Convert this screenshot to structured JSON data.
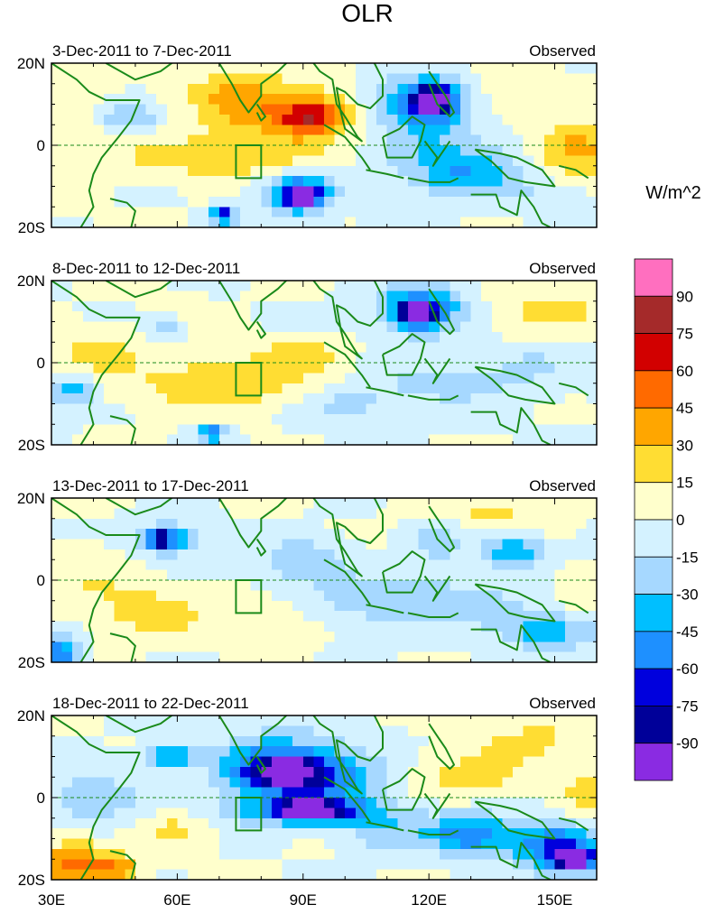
{
  "chart_data": {
    "type": "heatmap",
    "title": "OLR",
    "units": "W/m^2",
    "lon_range": [
      30,
      160
    ],
    "lat_range": [
      -20,
      20
    ],
    "x_ticks": [
      {
        "value": 30,
        "label": "30E"
      },
      {
        "value": 60,
        "label": "60E"
      },
      {
        "value": 90,
        "label": "90E"
      },
      {
        "value": 120,
        "label": "120E"
      },
      {
        "value": 150,
        "label": "150E"
      }
    ],
    "y_ticks": [
      {
        "value": 20,
        "label": "20N"
      },
      {
        "value": 0,
        "label": "0"
      },
      {
        "value": -20,
        "label": "20S"
      }
    ],
    "colorbar": {
      "levels": [
        "90",
        "75",
        "60",
        "45",
        "30",
        "15",
        "0",
        "-15",
        "-30",
        "-45",
        "-60",
        "-75",
        "-90"
      ],
      "colors": [
        "#ff6fbf",
        "#a52a2a",
        "#d20000",
        "#ff6a00",
        "#ffa600",
        "#ffdd33",
        "#ffffcc",
        "#d4f2ff",
        "#a6d8ff",
        "#00bfff",
        "#1e90ff",
        "#0000dd",
        "#000099",
        "#8a2be2"
      ]
    },
    "box_region": {
      "lon": [
        74,
        80
      ],
      "lat": [
        -8,
        0
      ]
    },
    "panels": [
      {
        "period": "3-Dec-2011 to 7-Dec-2011",
        "label": "Observed",
        "blobs": [
          {
            "lon": 85,
            "lat": 8,
            "rlon": 18,
            "rlat": 8,
            "v": 35
          },
          {
            "lon": 92,
            "lat": 7,
            "rlon": 8,
            "rlat": 4,
            "v": 50
          },
          {
            "lon": 70,
            "lat": -3,
            "rlon": 25,
            "rlat": 5,
            "v": 25
          },
          {
            "lon": 72,
            "lat": 13,
            "rlon": 10,
            "rlat": 6,
            "v": 20
          },
          {
            "lon": 155,
            "lat": -1,
            "rlon": 10,
            "rlat": 6,
            "v": 40
          },
          {
            "lon": 140,
            "lat": 12,
            "rlon": 15,
            "rlat": 6,
            "v": 15
          },
          {
            "lon": 35,
            "lat": 5,
            "rlon": 10,
            "rlat": 15,
            "v": 8
          },
          {
            "lon": 118,
            "lat": 10,
            "rlon": 12,
            "rlat": 7,
            "v": -55
          },
          {
            "lon": 121,
            "lat": 11,
            "rlon": 5,
            "rlat": 4,
            "v": -80
          },
          {
            "lon": 125,
            "lat": -2,
            "rlon": 18,
            "rlat": 6,
            "v": -25
          },
          {
            "lon": 128,
            "lat": -8,
            "rlon": 12,
            "rlat": 5,
            "v": -35
          },
          {
            "lon": 89,
            "lat": -12,
            "rlon": 8,
            "rlat": 5,
            "v": -65
          },
          {
            "lon": 90,
            "lat": -12,
            "rlon": 3,
            "rlat": 2,
            "v": -95
          },
          {
            "lon": 71,
            "lat": -17,
            "rlon": 3,
            "rlat": 2,
            "v": -75
          },
          {
            "lon": 48,
            "lat": 7,
            "rlon": 8,
            "rlat": 3,
            "v": -30
          },
          {
            "lon": 145,
            "lat": -12,
            "rlon": 15,
            "rlat": 5,
            "v": -10
          }
        ]
      },
      {
        "period": "8-Dec-2011 to 12-Dec-2011",
        "label": "Observed",
        "blobs": [
          {
            "lon": 72,
            "lat": -5,
            "rlon": 22,
            "rlat": 6,
            "v": 30
          },
          {
            "lon": 90,
            "lat": 2,
            "rlon": 10,
            "rlat": 4,
            "v": 22
          },
          {
            "lon": 150,
            "lat": 13,
            "rlon": 15,
            "rlat": 6,
            "v": 20
          },
          {
            "lon": 40,
            "lat": 2,
            "rlon": 10,
            "rlat": 5,
            "v": 20
          },
          {
            "lon": 60,
            "lat": 8,
            "rlon": 12,
            "rlat": 5,
            "v": 10
          },
          {
            "lon": 118,
            "lat": 13,
            "rlon": 10,
            "rlat": 6,
            "v": -60
          },
          {
            "lon": 117,
            "lat": 12,
            "rlon": 4,
            "rlat": 3,
            "v": -85
          },
          {
            "lon": 125,
            "lat": -5,
            "rlon": 20,
            "rlat": 6,
            "v": -20
          },
          {
            "lon": 35,
            "lat": -7,
            "rlon": 5,
            "rlat": 4,
            "v": -40
          },
          {
            "lon": 58,
            "lat": 8,
            "rlon": 6,
            "rlat": 3,
            "v": -30
          },
          {
            "lon": 68,
            "lat": -17,
            "rlon": 3,
            "rlat": 2,
            "v": -70
          },
          {
            "lon": 100,
            "lat": -10,
            "rlon": 12,
            "rlat": 5,
            "v": -20
          },
          {
            "lon": 145,
            "lat": 0,
            "rlon": 10,
            "rlat": 5,
            "v": -12
          }
        ]
      },
      {
        "period": "13-Dec-2011 to 17-Dec-2011",
        "label": "Observed",
        "blobs": [
          {
            "lon": 55,
            "lat": -8,
            "rlon": 12,
            "rlat": 6,
            "v": 25
          },
          {
            "lon": 82,
            "lat": -10,
            "rlon": 10,
            "rlat": 5,
            "v": 20
          },
          {
            "lon": 135,
            "lat": 16,
            "rlon": 14,
            "rlat": 5,
            "v": 18
          },
          {
            "lon": 40,
            "lat": 0,
            "rlon": 10,
            "rlat": 8,
            "v": 12
          },
          {
            "lon": 155,
            "lat": -5,
            "rlon": 8,
            "rlat": 6,
            "v": 15
          },
          {
            "lon": 58,
            "lat": 10,
            "rlon": 8,
            "rlat": 4,
            "v": -45
          },
          {
            "lon": 56,
            "lat": 10,
            "rlon": 3,
            "rlat": 2,
            "v": -75
          },
          {
            "lon": 90,
            "lat": 5,
            "rlon": 10,
            "rlat": 5,
            "v": -30
          },
          {
            "lon": 115,
            "lat": -5,
            "rlon": 25,
            "rlat": 6,
            "v": -30
          },
          {
            "lon": 140,
            "lat": 7,
            "rlon": 8,
            "rlat": 4,
            "v": -45
          },
          {
            "lon": 148,
            "lat": -12,
            "rlon": 12,
            "rlat": 5,
            "v": -40
          },
          {
            "lon": 32,
            "lat": -18,
            "rlon": 5,
            "rlat": 4,
            "v": -60
          },
          {
            "lon": 122,
            "lat": 10,
            "rlon": 6,
            "rlat": 5,
            "v": -25
          }
        ]
      },
      {
        "period": "18-Dec-2011 to 22-Dec-2011",
        "label": "Observed",
        "blobs": [
          {
            "lon": 35,
            "lat": -16,
            "rlon": 8,
            "rlat": 5,
            "v": 55
          },
          {
            "lon": 46,
            "lat": -17,
            "rlon": 5,
            "rlat": 3,
            "v": 40
          },
          {
            "lon": 60,
            "lat": -8,
            "rlon": 8,
            "rlat": 5,
            "v": 20
          },
          {
            "lon": 130,
            "lat": 5,
            "rlon": 15,
            "rlat": 6,
            "v": 22
          },
          {
            "lon": 145,
            "lat": 14,
            "rlon": 12,
            "rlat": 5,
            "v": 20
          },
          {
            "lon": 158,
            "lat": 0,
            "rlon": 6,
            "rlat": 5,
            "v": 25
          },
          {
            "lon": 85,
            "lat": 8,
            "rlon": 15,
            "rlat": 8,
            "v": -50
          },
          {
            "lon": 85,
            "lat": 6,
            "rlon": 10,
            "rlat": 4,
            "v": -70
          },
          {
            "lon": 90,
            "lat": -3,
            "rlon": 20,
            "rlat": 4,
            "v": -50
          },
          {
            "lon": 92,
            "lat": -3,
            "rlon": 8,
            "rlat": 2,
            "v": -80
          },
          {
            "lon": 130,
            "lat": -9,
            "rlon": 10,
            "rlat": 5,
            "v": -60
          },
          {
            "lon": 150,
            "lat": -12,
            "rlon": 10,
            "rlat": 6,
            "v": -60
          },
          {
            "lon": 155,
            "lat": -15,
            "rlon": 5,
            "rlat": 3,
            "v": -85
          },
          {
            "lon": 100,
            "lat": 5,
            "rlon": 12,
            "rlat": 6,
            "v": -30
          },
          {
            "lon": 40,
            "lat": 0,
            "rlon": 10,
            "rlat": 6,
            "v": -30
          },
          {
            "lon": 58,
            "lat": 10,
            "rlon": 6,
            "rlat": 3,
            "v": -45
          },
          {
            "lon": 110,
            "lat": -8,
            "rlon": 10,
            "rlat": 5,
            "v": -25
          }
        ]
      }
    ]
  }
}
